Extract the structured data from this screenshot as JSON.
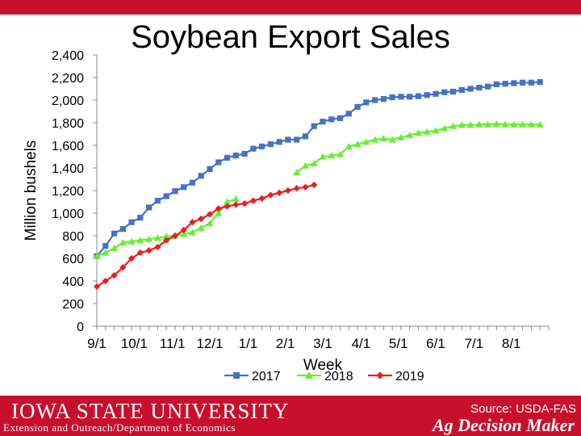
{
  "header": {
    "title": "Soybean Export Sales"
  },
  "footer": {
    "university": "IOWA STATE UNIVERSITY",
    "department": "Extension and Outreach/Department of Economics",
    "source": "Source: USDA-FAS",
    "brand": "Ag Decision Maker"
  },
  "colors": {
    "bar": "#c8102e",
    "s2017": "#4472c4",
    "s2018": "#66ee33",
    "s2019": "#e8201c"
  },
  "chart_data": {
    "type": "line",
    "title": "",
    "xlabel": "Week",
    "ylabel": "Million bushels",
    "ylim": [
      0,
      2400
    ],
    "xlim": [
      0,
      52
    ],
    "yticks": [
      0,
      200,
      400,
      600,
      800,
      1000,
      1200,
      1400,
      1600,
      1800,
      2000,
      2200,
      2400
    ],
    "ytick_labels": [
      "0",
      "200",
      "400",
      "600",
      "800",
      "1,000",
      "1,200",
      "1,400",
      "1,600",
      "1,800",
      "2,000",
      "2,200",
      "2,400"
    ],
    "xticks": [
      0,
      4.3,
      8.7,
      13,
      17.4,
      21.7,
      26,
      30.4,
      34.7,
      39,
      43.4,
      47.7
    ],
    "xtick_labels": [
      "9/1",
      "10/1",
      "11/1",
      "12/1",
      "1/1",
      "2/1",
      "3/1",
      "4/1",
      "5/1",
      "6/1",
      "7/1",
      "8/1"
    ],
    "grid": false,
    "legend_position": "bottom",
    "series": [
      {
        "name": "2017",
        "marker": "square",
        "x": [
          0,
          1,
          2,
          3,
          4,
          5,
          6,
          7,
          8,
          9,
          10,
          11,
          12,
          13,
          14,
          15,
          16,
          17,
          18,
          19,
          20,
          21,
          22,
          23,
          24,
          25,
          26,
          27,
          28,
          29,
          30,
          31,
          32,
          33,
          34,
          35,
          36,
          37,
          38,
          39,
          40,
          41,
          42,
          43,
          44,
          45,
          46,
          47,
          48,
          49,
          50,
          51
        ],
        "y": [
          620,
          710,
          820,
          860,
          920,
          960,
          1050,
          1110,
          1150,
          1195,
          1230,
          1270,
          1330,
          1390,
          1450,
          1490,
          1510,
          1525,
          1570,
          1590,
          1610,
          1630,
          1650,
          1650,
          1680,
          1770,
          1810,
          1830,
          1840,
          1880,
          1940,
          1980,
          2000,
          2010,
          2025,
          2030,
          2030,
          2035,
          2045,
          2055,
          2070,
          2075,
          2090,
          2100,
          2110,
          2120,
          2140,
          2145,
          2150,
          2155,
          2155,
          2160
        ]
      },
      {
        "name": "2018",
        "marker": "triangle",
        "x": [
          0,
          1,
          2,
          3,
          4,
          5,
          6,
          7,
          8,
          9,
          10,
          11,
          12,
          13,
          14,
          15,
          16
        ],
        "y": [
          620,
          650,
          690,
          740,
          750,
          760,
          770,
          780,
          795,
          800,
          815,
          830,
          870,
          910,
          1000,
          1100,
          1125
        ]
      },
      {
        "name": "2018",
        "marker": "triangle",
        "x": [
          23,
          24,
          25,
          26,
          27,
          28,
          29,
          30,
          31,
          32,
          33,
          34,
          35,
          36,
          37,
          38,
          39,
          40,
          41,
          42,
          43,
          44,
          45,
          46,
          47,
          48,
          49,
          50,
          51
        ],
        "y": [
          1360,
          1420,
          1440,
          1500,
          1510,
          1520,
          1590,
          1610,
          1630,
          1650,
          1660,
          1650,
          1670,
          1690,
          1710,
          1720,
          1730,
          1750,
          1770,
          1780,
          1780,
          1785,
          1785,
          1790,
          1785,
          1785,
          1785,
          1785,
          1785
        ]
      },
      {
        "name": "2019",
        "marker": "diamond",
        "x": [
          0,
          1,
          2,
          3,
          4,
          5,
          6,
          7,
          8,
          9,
          10,
          11,
          12,
          13,
          14,
          15,
          16,
          17,
          18,
          19,
          20,
          21,
          22,
          23,
          24,
          25
        ],
        "y": [
          350,
          400,
          450,
          520,
          600,
          650,
          670,
          700,
          760,
          800,
          850,
          920,
          950,
          990,
          1040,
          1060,
          1075,
          1085,
          1110,
          1130,
          1160,
          1180,
          1200,
          1220,
          1230,
          1250
        ]
      }
    ],
    "legend": [
      "2017",
      "2018",
      "2019"
    ]
  }
}
